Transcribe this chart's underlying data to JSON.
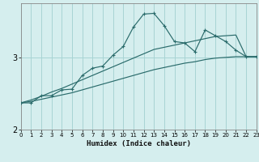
{
  "xlabel": "Humidex (Indice chaleur)",
  "bg_color": "#d5eeee",
  "grid_color": "#a8d4d4",
  "line_color": "#2a6b6b",
  "x": [
    0,
    1,
    2,
    3,
    4,
    5,
    6,
    7,
    8,
    9,
    10,
    11,
    12,
    13,
    14,
    15,
    16,
    17,
    18,
    19,
    20,
    21,
    22,
    23
  ],
  "y_main": [
    2.37,
    2.37,
    2.47,
    2.47,
    2.55,
    2.56,
    2.75,
    2.85,
    2.88,
    3.03,
    3.15,
    3.42,
    3.6,
    3.61,
    3.44,
    3.22,
    3.2,
    3.08,
    3.38,
    3.3,
    3.22,
    3.1,
    3.01,
    3.01
  ],
  "y_upper": [
    2.37,
    2.41,
    2.46,
    2.52,
    2.57,
    2.63,
    2.69,
    2.75,
    2.81,
    2.87,
    2.93,
    2.99,
    3.05,
    3.11,
    3.14,
    3.17,
    3.2,
    3.23,
    3.26,
    3.29,
    3.3,
    3.31,
    3.01,
    3.01
  ],
  "y_lower": [
    2.37,
    2.39,
    2.42,
    2.45,
    2.48,
    2.51,
    2.55,
    2.59,
    2.63,
    2.67,
    2.71,
    2.75,
    2.79,
    2.83,
    2.86,
    2.89,
    2.92,
    2.94,
    2.97,
    2.99,
    3.0,
    3.01,
    3.01,
    3.01
  ],
  "xlim": [
    0,
    23
  ],
  "ylim": [
    2.1,
    3.75
  ],
  "yticks": [
    2,
    3
  ],
  "xticks": [
    0,
    1,
    2,
    3,
    4,
    5,
    6,
    7,
    8,
    9,
    10,
    11,
    12,
    13,
    14,
    15,
    16,
    17,
    18,
    19,
    20,
    21,
    22,
    23
  ]
}
